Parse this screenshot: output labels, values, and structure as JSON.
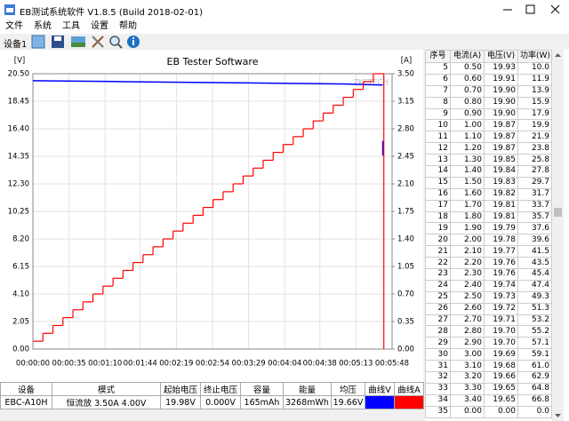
{
  "window": {
    "title": "EB测试系统软件 V1.8.5 (Build 2018-02-01)",
    "menu": [
      "文件",
      "系统",
      "工具",
      "设置",
      "帮助"
    ],
    "device_label": "设备1"
  },
  "chart_data": {
    "type": "line",
    "title": "EB Tester Software",
    "watermark": "ZKETECH",
    "y_label": "[V]",
    "y2_label": "[A]",
    "grid": true,
    "xlim": [
      0,
      348
    ],
    "xticks": [
      {
        "value": 0,
        "label": "00:00:00"
      },
      {
        "value": 35,
        "label": "00:00:35"
      },
      {
        "value": 70,
        "label": "00:01:10"
      },
      {
        "value": 104,
        "label": "00:01:44"
      },
      {
        "value": 139,
        "label": "00:02:19"
      },
      {
        "value": 174,
        "label": "00:02:54"
      },
      {
        "value": 209,
        "label": "00:03:29"
      },
      {
        "value": 244,
        "label": "00:04:04"
      },
      {
        "value": 278,
        "label": "00:04:38"
      },
      {
        "value": 313,
        "label": "00:05:13"
      },
      {
        "value": 348,
        "label": "00:05:48"
      }
    ],
    "ylim": [
      0,
      20.5
    ],
    "yticks": [
      {
        "value": 0,
        "label": "0.00"
      },
      2.05,
      {
        "value": 4.1,
        "label": "4.10"
      },
      6.15,
      {
        "value": 8.2,
        "label": "8.20"
      },
      10.25,
      {
        "value": 12.3,
        "label": "12.30"
      },
      14.35,
      {
        "value": 16.4,
        "label": "16.40"
      },
      18.45,
      {
        "value": 20.5,
        "label": "20.50"
      }
    ],
    "y2lim": [
      0,
      3.5
    ],
    "y2ticks": [
      {
        "value": 0,
        "label": "0.00"
      },
      0.35,
      {
        "value": 0.7,
        "label": "0.70"
      },
      1.05,
      {
        "value": 1.4,
        "label": "1.40"
      },
      1.75,
      {
        "value": 2.1,
        "label": "2.10"
      },
      2.45,
      {
        "value": 2.8,
        "label": "2.80"
      },
      3.15,
      {
        "value": 3.5,
        "label": "3.50"
      }
    ],
    "series": [
      {
        "name": "曲线V",
        "color": "#0000ff",
        "x": [
          0,
          100,
          200,
          300,
          339,
          339,
          339,
          339
        ],
        "values": [
          19.98,
          19.9,
          19.82,
          19.74,
          19.66,
          null,
          15.5,
          14.4
        ]
      },
      {
        "name": "曲线A",
        "color": "#ff0000",
        "axis": "y2",
        "step": true,
        "x": [
          0,
          9.7,
          19.4,
          29.1,
          38.8,
          48.5,
          58.2,
          67.9,
          77.6,
          87.3,
          97,
          106.7,
          116.4,
          126.1,
          135.8,
          145.5,
          155.2,
          164.9,
          174.6,
          184.3,
          194,
          203.7,
          213.4,
          223.1,
          232.8,
          242.5,
          252.2,
          261.9,
          271.6,
          281.3,
          291,
          300.7,
          310.4,
          320.1,
          329.8,
          340
        ],
        "values": [
          0.1,
          0.2,
          0.3,
          0.4,
          0.5,
          0.6,
          0.7,
          0.8,
          0.9,
          1.0,
          1.1,
          1.2,
          1.3,
          1.4,
          1.5,
          1.6,
          1.7,
          1.8,
          1.9,
          2.0,
          2.1,
          2.2,
          2.3,
          2.4,
          2.5,
          2.6,
          2.7,
          2.8,
          2.9,
          3.0,
          3.1,
          3.2,
          3.3,
          3.4,
          3.5,
          0
        ]
      }
    ]
  },
  "summary": {
    "headers": [
      "设备",
      "模式",
      "起始电压",
      "终止电压",
      "容量",
      "能量",
      "均压"
    ],
    "row": [
      "EBC-A10H",
      "恒流放 3.50A 4.00V",
      "19.98V",
      "0.000V",
      "165mAh",
      "3268mWh",
      "19.66V"
    ]
  },
  "data_table": {
    "headers": [
      "序号",
      "电流(A)",
      "电压(V)",
      "功率(W)"
    ],
    "rows": [
      [
        "5",
        "0.50",
        "19.93",
        "10.0"
      ],
      [
        "6",
        "0.60",
        "19.91",
        "11.9"
      ],
      [
        "7",
        "0.70",
        "19.90",
        "13.9"
      ],
      [
        "8",
        "0.80",
        "19.90",
        "15.9"
      ],
      [
        "9",
        "0.90",
        "19.90",
        "17.9"
      ],
      [
        "10",
        "1.00",
        "19.87",
        "19.9"
      ],
      [
        "11",
        "1.10",
        "19.87",
        "21.9"
      ],
      [
        "12",
        "1.20",
        "19.87",
        "23.8"
      ],
      [
        "13",
        "1.30",
        "19.85",
        "25.8"
      ],
      [
        "14",
        "1.40",
        "19.84",
        "27.8"
      ],
      [
        "15",
        "1.50",
        "19.83",
        "29.7"
      ],
      [
        "16",
        "1.60",
        "19.82",
        "31.7"
      ],
      [
        "17",
        "1.70",
        "19.81",
        "33.7"
      ],
      [
        "18",
        "1.80",
        "19.81",
        "35.7"
      ],
      [
        "19",
        "1.90",
        "19.79",
        "37.6"
      ],
      [
        "20",
        "2.00",
        "19.78",
        "39.6"
      ],
      [
        "21",
        "2.10",
        "19.77",
        "41.5"
      ],
      [
        "22",
        "2.20",
        "19.76",
        "43.5"
      ],
      [
        "23",
        "2.30",
        "19.76",
        "45.4"
      ],
      [
        "24",
        "2.40",
        "19.74",
        "47.4"
      ],
      [
        "25",
        "2.50",
        "19.73",
        "49.3"
      ],
      [
        "26",
        "2.60",
        "19.72",
        "51.3"
      ],
      [
        "27",
        "2.70",
        "19.71",
        "53.2"
      ],
      [
        "28",
        "2.80",
        "19.70",
        "55.2"
      ],
      [
        "29",
        "2.90",
        "19.70",
        "57.1"
      ],
      [
        "30",
        "3.00",
        "19.69",
        "59.1"
      ],
      [
        "31",
        "3.10",
        "19.68",
        "61.0"
      ],
      [
        "32",
        "3.20",
        "19.66",
        "62.9"
      ],
      [
        "33",
        "3.30",
        "19.65",
        "64.8"
      ],
      [
        "34",
        "3.40",
        "19.65",
        "66.8"
      ],
      [
        "35",
        "0.00",
        "0.00",
        "0.0"
      ]
    ]
  }
}
